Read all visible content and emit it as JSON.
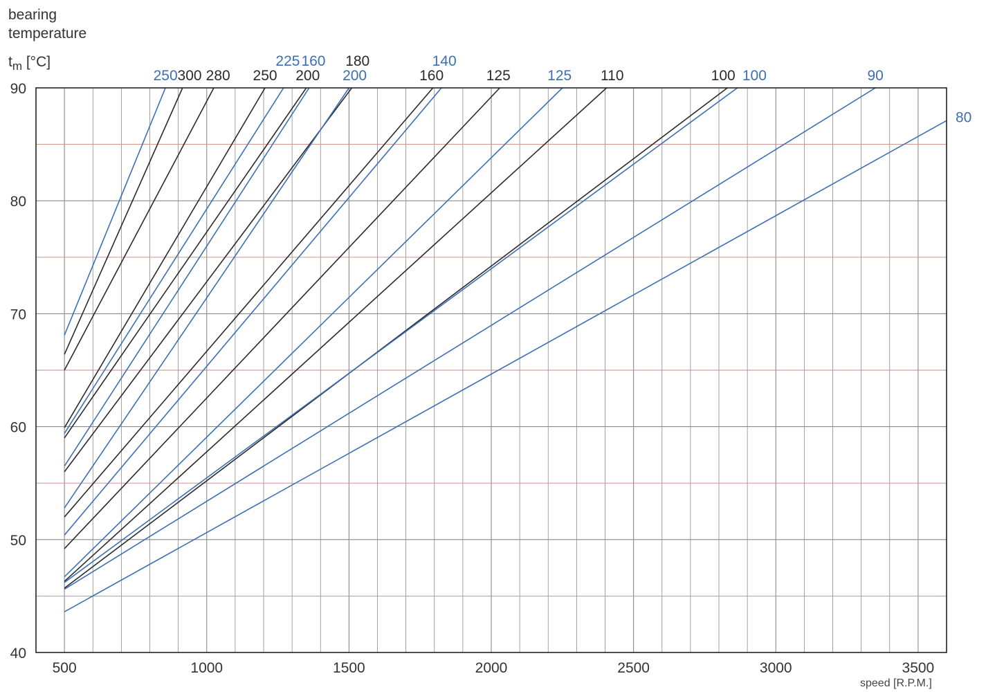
{
  "chart_data": {
    "type": "line",
    "ylabel_lines": [
      "bearing",
      "temperature"
    ],
    "ylabel_symbol": "t",
    "ylabel_sub": "m",
    "ylabel_unit": " [°C]",
    "xlabel": "speed [R.P.M.]",
    "xlim": [
      400,
      3600
    ],
    "ylim": [
      40,
      90
    ],
    "xticks": [
      500,
      1000,
      1500,
      2000,
      2500,
      3000,
      3500
    ],
    "yticks": [
      40,
      50,
      60,
      70,
      80,
      90
    ],
    "grid": true,
    "colors": {
      "black": "#2a2a2a",
      "blue": "#3c6fb5",
      "grid": "#8a8a8a",
      "gridRed": "#c88a7a"
    },
    "series": [
      {
        "name": "250",
        "color": "blue",
        "x": [
          500,
          855
        ],
        "y": [
          68.1,
          90
        ]
      },
      {
        "name": "300",
        "color": "black",
        "x": [
          500,
          915
        ],
        "y": [
          66.4,
          90
        ]
      },
      {
        "name": "280",
        "color": "black",
        "x": [
          500,
          1025
        ],
        "y": [
          65.0,
          90
        ]
      },
      {
        "name": "250",
        "color": "black",
        "x": [
          500,
          1205
        ],
        "y": [
          59.9,
          90
        ]
      },
      {
        "name": "225",
        "color": "blue",
        "x": [
          500,
          1270
        ],
        "y": [
          59.4,
          90
        ]
      },
      {
        "name": "200",
        "color": "black",
        "x": [
          500,
          1350
        ],
        "y": [
          59.0,
          90
        ]
      },
      {
        "name": "160",
        "color": "blue",
        "x": [
          500,
          1360
        ],
        "y": [
          56.5,
          90
        ]
      },
      {
        "name": "180",
        "color": "black",
        "x": [
          500,
          1510
        ],
        "y": [
          56.0,
          90
        ]
      },
      {
        "name": "200",
        "color": "blue",
        "x": [
          500,
          1500
        ],
        "y": [
          52.8,
          90
        ]
      },
      {
        "name": "160",
        "color": "black",
        "x": [
          500,
          1795
        ],
        "y": [
          52.0,
          90
        ]
      },
      {
        "name": "140",
        "color": "blue",
        "x": [
          500,
          1825
        ],
        "y": [
          50.4,
          90
        ]
      },
      {
        "name": "125",
        "color": "black",
        "x": [
          500,
          2030
        ],
        "y": [
          49.2,
          90
        ]
      },
      {
        "name": "125",
        "color": "blue",
        "x": [
          500,
          2250
        ],
        "y": [
          46.7,
          90
        ]
      },
      {
        "name": "110",
        "color": "black",
        "x": [
          500,
          2405
        ],
        "y": [
          46.3,
          90
        ]
      },
      {
        "name": "100",
        "color": "black",
        "x": [
          500,
          2830
        ],
        "y": [
          45.7,
          90
        ]
      },
      {
        "name": "100",
        "color": "blue",
        "x": [
          500,
          2865
        ],
        "y": [
          46.2,
          90
        ]
      },
      {
        "name": "90",
        "color": "blue",
        "x": [
          500,
          3350
        ],
        "y": [
          45.6,
          90
        ]
      },
      {
        "name": "80",
        "color": "blue",
        "x": [
          500,
          3600
        ],
        "y": [
          43.6,
          87.1
        ]
      }
    ],
    "line_labels": [
      {
        "text": "250",
        "color": "blue",
        "x": 855,
        "row": 1
      },
      {
        "text": "300",
        "color": "black",
        "x": 940,
        "row": 1
      },
      {
        "text": "280",
        "color": "black",
        "x": 1040,
        "row": 1
      },
      {
        "text": "250",
        "color": "black",
        "x": 1205,
        "row": 1
      },
      {
        "text": "225",
        "color": "blue",
        "x": 1285,
        "row": 2
      },
      {
        "text": "160",
        "color": "blue",
        "x": 1375,
        "row": 2
      },
      {
        "text": "200",
        "color": "black",
        "x": 1355,
        "row": 1
      },
      {
        "text": "180",
        "color": "black",
        "x": 1530,
        "row": 2
      },
      {
        "text": "200",
        "color": "blue",
        "x": 1520,
        "row": 1
      },
      {
        "text": "140",
        "color": "blue",
        "x": 1835,
        "row": 2
      },
      {
        "text": "160",
        "color": "black",
        "x": 1790,
        "row": 1
      },
      {
        "text": "125",
        "color": "black",
        "x": 2025,
        "row": 1
      },
      {
        "text": "125",
        "color": "blue",
        "x": 2240,
        "row": 1
      },
      {
        "text": "110",
        "color": "black",
        "x": 2425,
        "row": 1
      },
      {
        "text": "100",
        "color": "black",
        "x": 2815,
        "row": 1
      },
      {
        "text": "100",
        "color": "blue",
        "x": 2925,
        "row": 1
      },
      {
        "text": "90",
        "color": "blue",
        "x": 3350,
        "row": 1
      },
      {
        "text": "80",
        "color": "blue",
        "x": 3675,
        "row": 0,
        "y": 87.1
      }
    ]
  }
}
